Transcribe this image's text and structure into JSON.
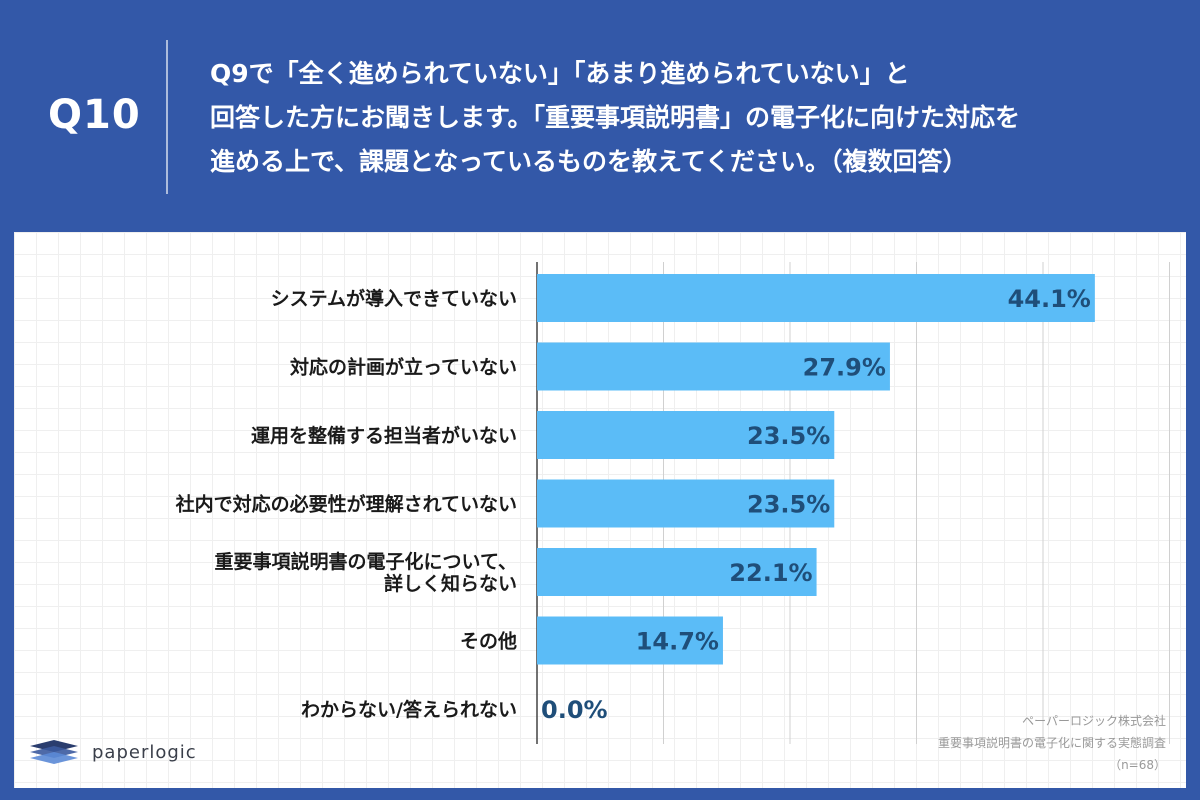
{
  "header": {
    "question_number": "Q10",
    "question_lines": [
      "Q9で「全く進められていない」「あまり進められていない」と",
      "回答した方にお聞きします。「重要事項説明書」の電子化に向けた対応を",
      "進める上で、課題となっているものを教えてください。（複数回答）"
    ]
  },
  "chart_data": {
    "type": "bar",
    "orientation": "horizontal",
    "categories": [
      "システムが導入できていない",
      "対応の計画が立っていない",
      "運用を整備する担当者がいない",
      "社内で対応の必要性が理解されていない",
      "重要事項説明書の電子化について、\n詳しく知らない",
      "その他",
      "わからない/答えられない"
    ],
    "values": [
      44.1,
      27.9,
      23.5,
      23.5,
      22.1,
      14.7,
      0.0
    ],
    "data_labels": [
      "44.1%",
      "27.9%",
      "23.5%",
      "23.5%",
      "22.1%",
      "14.7%",
      "0.0%"
    ],
    "xlim": [
      0,
      50
    ],
    "grid": true,
    "bar_color": "#5bbcf7",
    "label_color": "#1f4e79"
  },
  "credit": {
    "company": "ペーパーロジック株式会社",
    "survey": "重要事項説明書の電子化に関する実態調査",
    "sample": "（n=68）"
  },
  "logo": {
    "text": "paperlogic"
  },
  "colors": {
    "background": "#3358a8",
    "panel": "#ffffff",
    "text": "#1a1a1a"
  }
}
